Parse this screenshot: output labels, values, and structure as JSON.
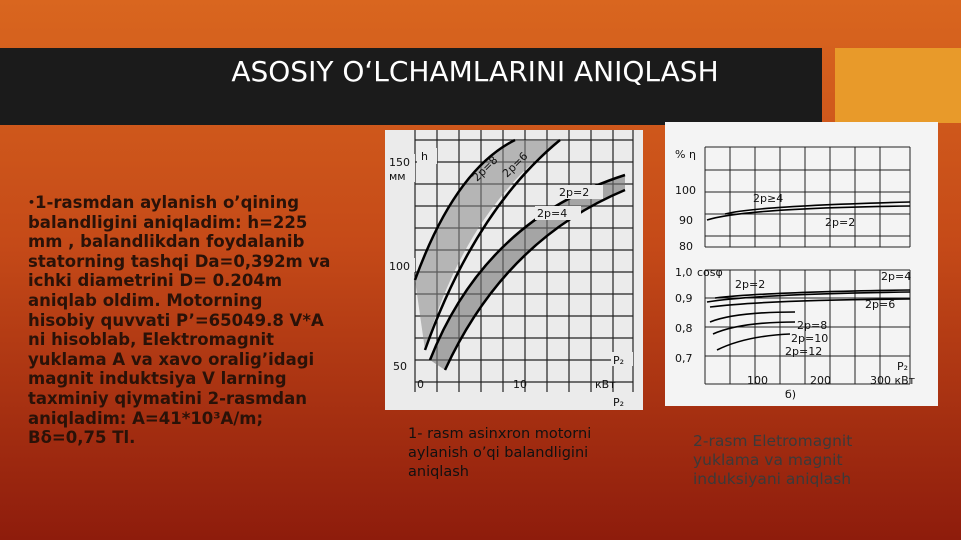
{
  "slide": {
    "title": "ASOSIY O‘LCHAMLARINI ANIQLASH",
    "bullet": "•",
    "body_lines": [
      "1-rasmdan aylanish o’qining",
      "balandligini aniqladim: h=225",
      "mm , balandlikdan foydalanib",
      "statorning tashqi Da=0,392m va",
      "ichki diametrini D= 0.204m",
      "aniqlab oldim. Motorning",
      "hisobiy quvvati P’=65049.8 V*A",
      "ni hisoblab,  Elektromagnit",
      "yuklama A va xavo oralig’idagi",
      "magnit induktsiya V larning",
      "taxminiy qiymatini 2-rasmdan",
      "aniqladim: A=41*10³A/m;",
      "Bδ=0,75 Tl."
    ],
    "figure1": {
      "caption_lines": [
        "1- rasm asinxron motorni",
        "aylanish o’qi balandligini",
        "aniqlash"
      ],
      "labels": [
        "h",
        "150",
        "мм",
        "100",
        "50",
        "0",
        "10",
        "кВт",
        "P₂",
        "P₂",
        "2p=8",
        "2p=6",
        "2p=2",
        "2p=4"
      ]
    },
    "figure2": {
      "caption_lines": [
        "2-rasm Eletromagnit",
        "yuklama va magnit",
        "induksiyani aniqlash"
      ],
      "labels": [
        "%",
        "η",
        "100",
        "90",
        "80",
        "2p≥4",
        "2p=2",
        "1,0",
        "cosφ",
        "0,9",
        "0,8",
        "0,7",
        "2p=2",
        "2p=4",
        "2p=6",
        "2p=8",
        "2p=10",
        "2p=12",
        "P₂",
        "100",
        "200",
        "300 кВт",
        "б)"
      ]
    }
  }
}
